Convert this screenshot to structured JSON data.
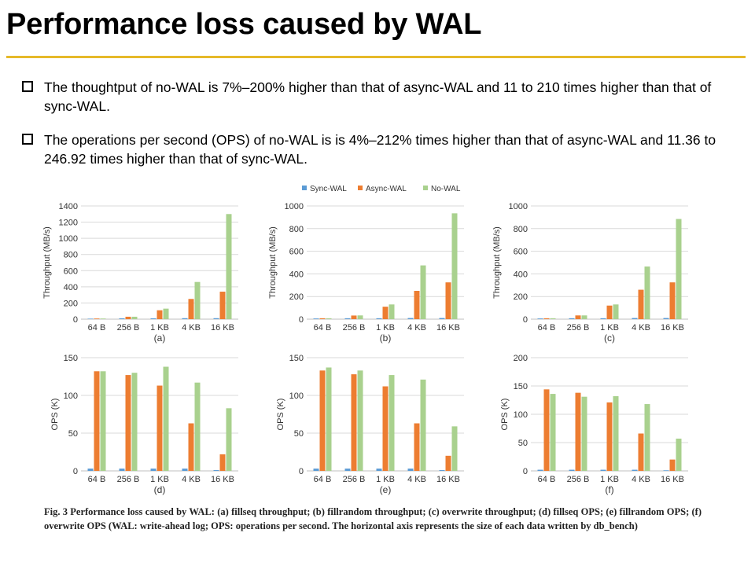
{
  "page": {
    "title": "Performance loss caused by WAL",
    "bullets": [
      "The thoughtput of no-WAL is 7%–200% higher than that of async-WAL and 11 to 210 times higher than that of sync-WAL.",
      "The operations per second (OPS) of no-WAL is is 4%–212% times higher than that of async-WAL and 11.36 to 246.92 times higher than that of sync-WAL."
    ],
    "caption": "Fig. 3   Performance loss caused by WAL: (a) fillseq throughput; (b) fillrandom throughput; (c) overwrite throughput; (d) fillseq OPS; (e) fillrandom OPS; (f) overwrite OPS (WAL: write-ahead log; OPS: operations per second. The horizontal axis represents the size of each data written by db_bench)"
  },
  "colors": {
    "sync": "#5b9bd5",
    "async": "#ed7d31",
    "nowal": "#a9d18e",
    "accent": "#e6b92a"
  },
  "legend": [
    "Sync-WAL",
    "Async-WAL",
    "No-WAL"
  ],
  "chart_data": [
    {
      "type": "bar",
      "label": "(a)",
      "ylabel": "Throughput (MB/s)",
      "categories": [
        "64 B",
        "256 B",
        "1 KB",
        "4 KB",
        "16 KB"
      ],
      "ylim": [
        0,
        1400
      ],
      "yticks": [
        0,
        200,
        400,
        600,
        800,
        1000,
        1200,
        1400
      ],
      "series": [
        {
          "name": "Sync-WAL",
          "values": [
            6,
            10,
            10,
            12,
            12
          ]
        },
        {
          "name": "Async-WAL",
          "values": [
            8,
            30,
            110,
            250,
            340
          ]
        },
        {
          "name": "No-WAL",
          "values": [
            8,
            30,
            130,
            460,
            1300
          ]
        }
      ]
    },
    {
      "type": "bar",
      "label": "(b)",
      "ylabel": "Throughput (MB/s)",
      "categories": [
        "64 B",
        "256 B",
        "1 KB",
        "4 KB",
        "16 KB"
      ],
      "ylim": [
        0,
        1000
      ],
      "yticks": [
        0,
        200,
        400,
        600,
        800,
        1000
      ],
      "series": [
        {
          "name": "Sync-WAL",
          "values": [
            6,
            8,
            8,
            10,
            10
          ]
        },
        {
          "name": "Async-WAL",
          "values": [
            8,
            32,
            110,
            250,
            325
          ]
        },
        {
          "name": "No-WAL",
          "values": [
            8,
            33,
            130,
            475,
            935
          ]
        }
      ]
    },
    {
      "type": "bar",
      "label": "(c)",
      "ylabel": "Throughput (MB/s)",
      "categories": [
        "64 B",
        "256 B",
        "1 KB",
        "4 KB",
        "16 KB"
      ],
      "ylim": [
        0,
        1000
      ],
      "yticks": [
        0,
        200,
        400,
        600,
        800,
        1000
      ],
      "series": [
        {
          "name": "Sync-WAL",
          "values": [
            6,
            8,
            8,
            10,
            10
          ]
        },
        {
          "name": "Async-WAL",
          "values": [
            8,
            33,
            120,
            260,
            325
          ]
        },
        {
          "name": "No-WAL",
          "values": [
            8,
            33,
            130,
            465,
            885
          ]
        }
      ]
    },
    {
      "type": "bar",
      "label": "(d)",
      "ylabel": "OPS (K)",
      "categories": [
        "64 B",
        "256 B",
        "1 KB",
        "4 KB",
        "16 KB"
      ],
      "ylim": [
        0,
        150
      ],
      "yticks": [
        0,
        50,
        100,
        150
      ],
      "series": [
        {
          "name": "Sync-WAL",
          "values": [
            3,
            3,
            3,
            3,
            1
          ]
        },
        {
          "name": "Async-WAL",
          "values": [
            132,
            127,
            113,
            63,
            22
          ]
        },
        {
          "name": "No-WAL",
          "values": [
            132,
            130,
            138,
            117,
            83
          ]
        }
      ]
    },
    {
      "type": "bar",
      "label": "(e)",
      "ylabel": "OPS (K)",
      "categories": [
        "64 B",
        "256 B",
        "1 KB",
        "4 KB",
        "16 KB"
      ],
      "ylim": [
        0,
        150
      ],
      "yticks": [
        0,
        50,
        100,
        150
      ],
      "series": [
        {
          "name": "Sync-WAL",
          "values": [
            3,
            3,
            3,
            3,
            1
          ]
        },
        {
          "name": "Async-WAL",
          "values": [
            133,
            128,
            112,
            63,
            20
          ]
        },
        {
          "name": "No-WAL",
          "values": [
            137,
            133,
            127,
            121,
            59
          ]
        }
      ]
    },
    {
      "type": "bar",
      "label": "(f)",
      "ylabel": "OPS (K)",
      "categories": [
        "64 B",
        "256 B",
        "1 KB",
        "4 KB",
        "16 KB"
      ],
      "ylim": [
        0,
        200
      ],
      "yticks": [
        0,
        50,
        100,
        150,
        200
      ],
      "series": [
        {
          "name": "Sync-WAL",
          "values": [
            2,
            2,
            2,
            2,
            1
          ]
        },
        {
          "name": "Async-WAL",
          "values": [
            144,
            138,
            121,
            66,
            20
          ]
        },
        {
          "name": "No-WAL",
          "values": [
            136,
            131,
            132,
            118,
            57
          ]
        }
      ]
    }
  ]
}
